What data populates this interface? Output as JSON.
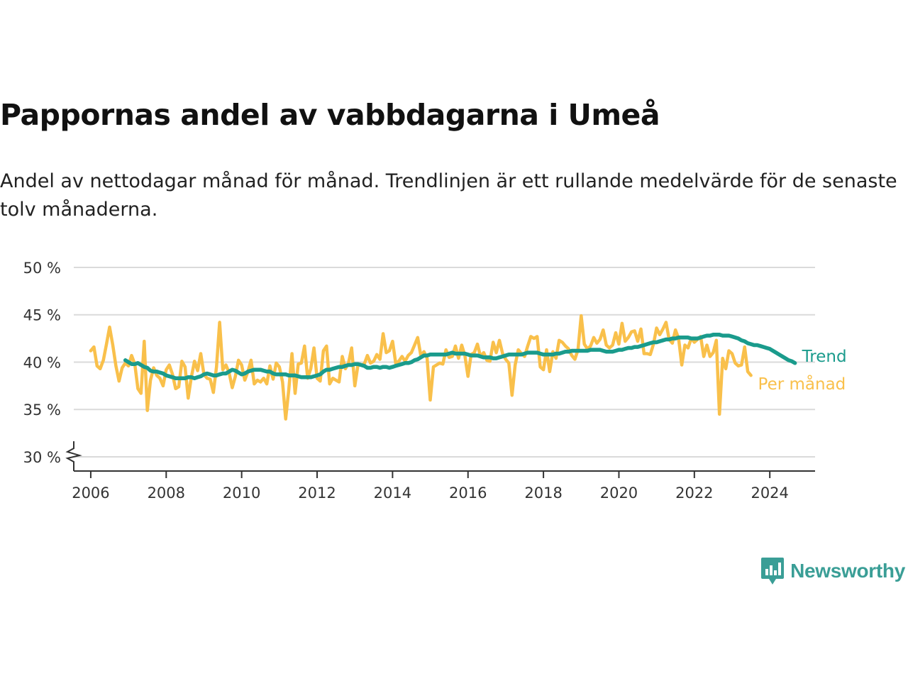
{
  "header": {
    "title": "Pappornas andel av vabbdagarna i Umeå",
    "subtitle": "Andel av nettodagar månad för månad. Trendlinjen är ett rullande medelvärde för de senaste tolv månaderna."
  },
  "brand": {
    "name": "Newsworthy",
    "icon": "newsworthy-logo-icon",
    "color": "#3a9e96"
  },
  "chart_data": {
    "type": "line",
    "title": "Pappornas andel av vabbdagarna i Umeå",
    "xlabel": "",
    "ylabel": "",
    "xlim": [
      2005.55,
      2025.2
    ],
    "ylim": [
      28.5,
      50
    ],
    "y_axis_break": true,
    "grid": "horizontal",
    "legend": "inline labels at line ends",
    "x_ticks": [
      2006,
      2008,
      2010,
      2012,
      2014,
      2016,
      2018,
      2020,
      2022,
      2024
    ],
    "x_tick_labels": [
      "2006",
      "2008",
      "2010",
      "2012",
      "2014",
      "2016",
      "2018",
      "2020",
      "2022",
      "2024"
    ],
    "y_ticks": [
      30,
      35,
      40,
      45,
      50
    ],
    "y_tick_labels": [
      "30 %",
      "35 %",
      "40 %",
      "45 %",
      "50 %"
    ],
    "series": [
      {
        "name": "Per månad",
        "color": "#f9c04b",
        "start": 2006.0,
        "step": 0.08333,
        "values": [
          41.2,
          41.6,
          39.6,
          39.3,
          40.2,
          41.9,
          43.7,
          41.8,
          39.6,
          38.0,
          39.4,
          39.9,
          39.6,
          40.7,
          39.8,
          37.2,
          36.7,
          42.2,
          34.9,
          38.1,
          39.4,
          38.6,
          38.3,
          37.5,
          39.2,
          39.7,
          38.7,
          37.2,
          37.4,
          40.1,
          39.5,
          36.2,
          38.4,
          40.1,
          39.1,
          40.9,
          38.7,
          38.3,
          38.2,
          36.8,
          39.5,
          44.2,
          39.2,
          39.7,
          38.9,
          37.3,
          38.5,
          40.2,
          39.7,
          38.1,
          39.0,
          40.2,
          37.7,
          38.1,
          37.9,
          38.3,
          37.7,
          39.6,
          38.2,
          39.9,
          39.5,
          37.9,
          34.0,
          37.1,
          40.9,
          36.7,
          39.8,
          39.9,
          41.7,
          38.3,
          39.3,
          41.5,
          38.3,
          38.0,
          41.2,
          41.7,
          37.7,
          38.3,
          38.1,
          37.9,
          40.6,
          39.3,
          39.9,
          41.5,
          37.5,
          39.7,
          39.7,
          39.8,
          40.7,
          39.9,
          40.1,
          40.8,
          40.3,
          43.0,
          41.0,
          41.2,
          42.2,
          39.9,
          40.1,
          40.6,
          40.1,
          40.7,
          41.0,
          41.8,
          42.6,
          40.7,
          41.1,
          40.4,
          36.0,
          39.5,
          39.7,
          39.9,
          39.8,
          41.3,
          40.5,
          40.6,
          41.7,
          40.4,
          41.8,
          40.7,
          38.5,
          40.8,
          41.0,
          41.9,
          40.6,
          41.0,
          40.2,
          40.1,
          42.1,
          41.0,
          42.3,
          40.9,
          40.3,
          39.9,
          36.5,
          39.7,
          41.3,
          40.9,
          40.6,
          41.7,
          42.7,
          42.5,
          42.7,
          39.5,
          39.2,
          41.3,
          39.0,
          41.1,
          40.4,
          42.3,
          42.1,
          41.7,
          41.4,
          40.7,
          40.3,
          41.3,
          44.9,
          41.9,
          41.4,
          41.7,
          42.6,
          42.0,
          42.4,
          43.4,
          41.8,
          41.5,
          41.8,
          43.1,
          41.9,
          44.1,
          42.2,
          42.6,
          43.2,
          43.3,
          42.2,
          43.5,
          40.9,
          40.9,
          40.8,
          41.9,
          43.6,
          42.9,
          43.5,
          44.2,
          42.4,
          42.0,
          43.4,
          42.5,
          39.7,
          41.8,
          41.5,
          42.5,
          42.1,
          42.4,
          42.7,
          40.6,
          41.8,
          40.6,
          41.0,
          42.3,
          34.5,
          40.4,
          39.3,
          41.2,
          40.9,
          39.9,
          39.6,
          39.7,
          41.6,
          39.0,
          38.6
        ]
      },
      {
        "name": "Trend",
        "color": "#1a9b8c",
        "start": 2006.9167,
        "step": 0.08333,
        "values": [
          40.2,
          40.0,
          39.8,
          39.8,
          39.9,
          39.7,
          39.5,
          39.4,
          39.1,
          39.0,
          39.0,
          38.9,
          38.8,
          38.6,
          38.5,
          38.4,
          38.3,
          38.3,
          38.3,
          38.3,
          38.4,
          38.4,
          38.3,
          38.4,
          38.5,
          38.7,
          38.8,
          38.7,
          38.6,
          38.6,
          38.7,
          38.8,
          38.8,
          39.0,
          39.2,
          39.1,
          38.9,
          38.7,
          38.8,
          39.0,
          39.1,
          39.2,
          39.2,
          39.2,
          39.1,
          39.0,
          39.0,
          38.8,
          38.7,
          38.7,
          38.7,
          38.7,
          38.6,
          38.6,
          38.6,
          38.5,
          38.4,
          38.4,
          38.4,
          38.4,
          38.5,
          38.6,
          38.7,
          39.0,
          39.2,
          39.2,
          39.3,
          39.4,
          39.5,
          39.5,
          39.6,
          39.7,
          39.7,
          39.8,
          39.8,
          39.7,
          39.6,
          39.4,
          39.4,
          39.5,
          39.5,
          39.4,
          39.5,
          39.5,
          39.4,
          39.5,
          39.6,
          39.7,
          39.8,
          39.9,
          39.9,
          40.0,
          40.2,
          40.3,
          40.5,
          40.7,
          40.7,
          40.8,
          40.8,
          40.8,
          40.8,
          40.8,
          40.8,
          40.9,
          41.0,
          40.9,
          40.9,
          40.9,
          40.9,
          40.8,
          40.7,
          40.7,
          40.7,
          40.6,
          40.5,
          40.5,
          40.5,
          40.4,
          40.4,
          40.5,
          40.6,
          40.7,
          40.8,
          40.8,
          40.8,
          40.8,
          40.8,
          40.9,
          41.0,
          41.0,
          41.0,
          41.0,
          40.9,
          40.8,
          40.8,
          40.8,
          40.8,
          40.9,
          40.9,
          41.0,
          41.1,
          41.1,
          41.2,
          41.2,
          41.2,
          41.2,
          41.2,
          41.2,
          41.3,
          41.3,
          41.3,
          41.3,
          41.2,
          41.1,
          41.1,
          41.1,
          41.2,
          41.3,
          41.3,
          41.4,
          41.5,
          41.5,
          41.6,
          41.6,
          41.7,
          41.8,
          41.9,
          42.0,
          42.1,
          42.1,
          42.2,
          42.3,
          42.4,
          42.4,
          42.5,
          42.5,
          42.6,
          42.6,
          42.6,
          42.6,
          42.5,
          42.5,
          42.5,
          42.6,
          42.7,
          42.8,
          42.8,
          42.9,
          42.9,
          42.9,
          42.8,
          42.8,
          42.8,
          42.7,
          42.6,
          42.5,
          42.3,
          42.2,
          42.0,
          41.9,
          41.8,
          41.8,
          41.7,
          41.6,
          41.5,
          41.4,
          41.2,
          41.0,
          40.8,
          40.6,
          40.4,
          40.2,
          40.1,
          39.9
        ]
      }
    ]
  }
}
